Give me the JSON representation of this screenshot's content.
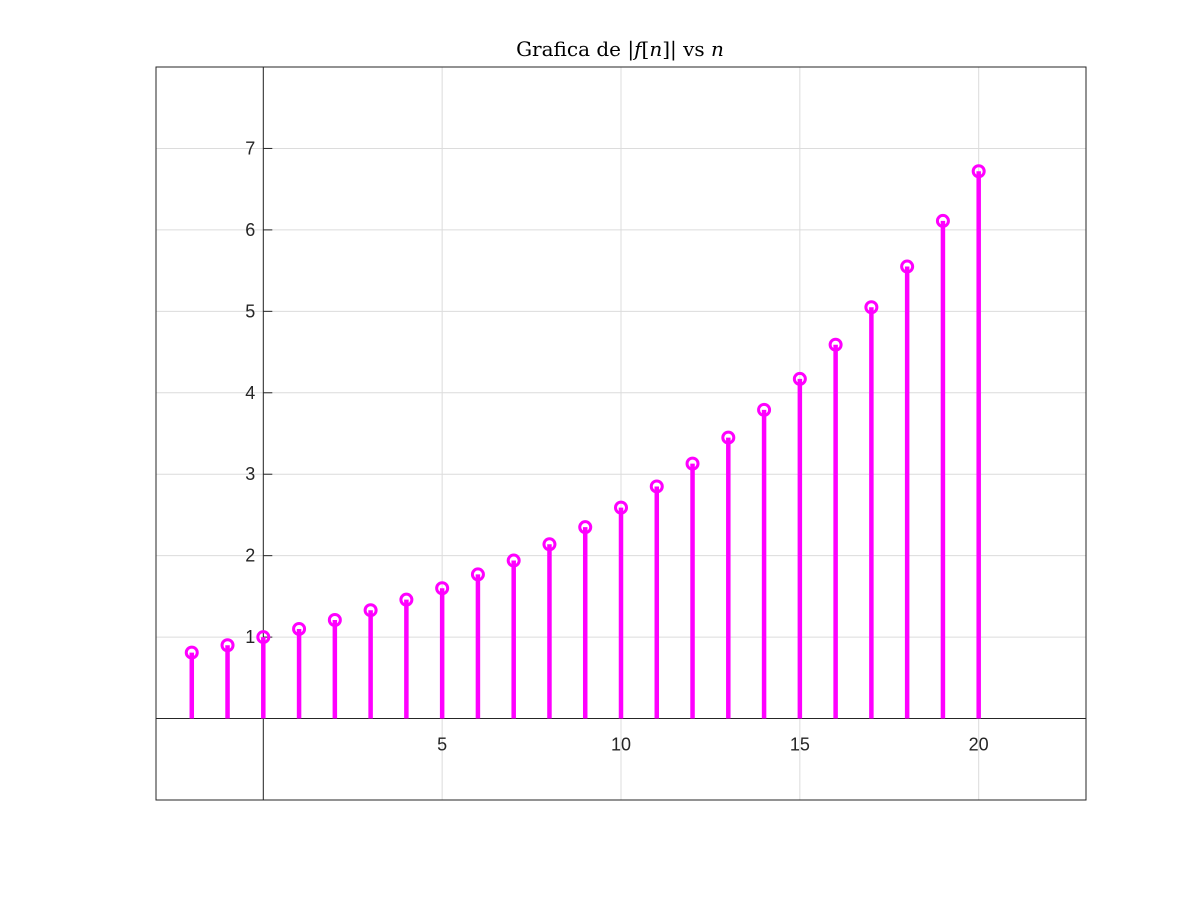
{
  "chart_data": {
    "type": "stem",
    "title_parts": [
      {
        "text": "Grafica de |",
        "italic": false
      },
      {
        "text": "f",
        "italic": true
      },
      {
        "text": "[",
        "italic": false
      },
      {
        "text": "n",
        "italic": true
      },
      {
        "text": "]| vs ",
        "italic": false
      },
      {
        "text": "n",
        "italic": true
      }
    ],
    "xlabel": "",
    "ylabel": "",
    "x": [
      -2,
      -1,
      0,
      1,
      2,
      3,
      4,
      5,
      6,
      7,
      8,
      9,
      10,
      11,
      12,
      13,
      14,
      15,
      16,
      17,
      18,
      19,
      20
    ],
    "values": [
      0.81,
      0.9,
      1.0,
      1.1,
      1.21,
      1.33,
      1.46,
      1.6,
      1.77,
      1.94,
      2.14,
      2.35,
      2.59,
      2.85,
      3.13,
      3.45,
      3.79,
      4.17,
      4.59,
      5.05,
      5.55,
      6.11,
      6.72
    ],
    "xlim": [
      -3,
      23
    ],
    "ylim": [
      -1,
      8
    ],
    "xticks": [
      5,
      10,
      15,
      20
    ],
    "yticks": [
      1,
      2,
      3,
      4,
      5,
      6,
      7
    ],
    "grid": true,
    "axis_location": "origin",
    "colors": {
      "stem": "#ff00ff",
      "marker": "#ff00ff",
      "grid": "#dcdcdc",
      "axes": "#262626"
    }
  }
}
